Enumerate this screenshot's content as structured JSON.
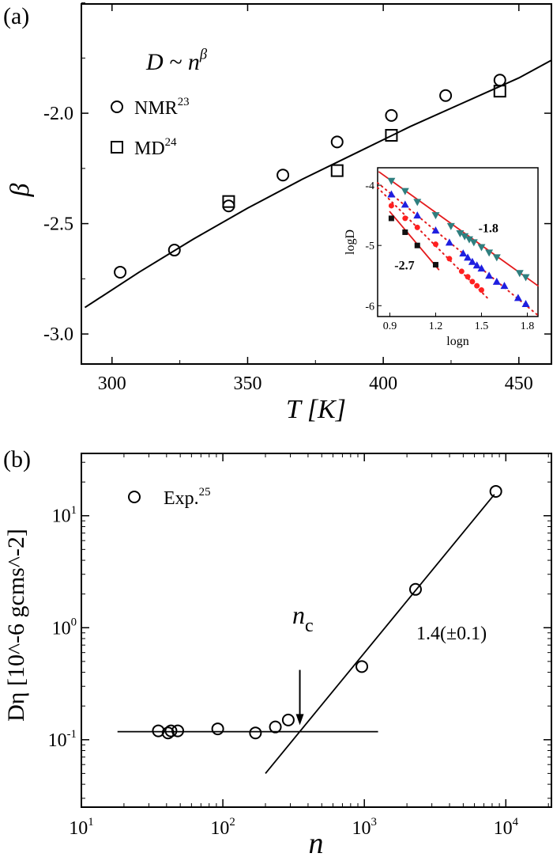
{
  "chart_data": [
    {
      "panel_label": "(a)",
      "type": "scatter",
      "xlabel": "T [K]",
      "ylabel": "β",
      "xlim": [
        288.7,
        462
      ],
      "ylim": [
        -3.136,
        -1.505
      ],
      "xticks": [
        300,
        350,
        400,
        450
      ],
      "xtick_labels": [
        "300",
        "350",
        "400",
        "450"
      ],
      "yticks": [
        -3.0,
        -2.5,
        -2.0
      ],
      "ytick_labels": [
        "-3.0",
        "-2.5",
        "-2.0"
      ],
      "annotation": "D ~ n^β",
      "legend_position": "top-left",
      "series": [
        {
          "name": "NMR",
          "ref": "23",
          "marker": "circle",
          "x": [
            303,
            323,
            343,
            363,
            383,
            403,
            423,
            443
          ],
          "y": [
            -2.72,
            -2.62,
            -2.42,
            -2.28,
            -2.13,
            -2.01,
            -1.92,
            -1.85
          ]
        },
        {
          "name": "MD",
          "ref": "24",
          "marker": "square",
          "x": [
            343,
            383,
            403,
            443
          ],
          "y": [
            -2.4,
            -2.26,
            -2.1,
            -1.9
          ]
        }
      ],
      "fit_curve": {
        "x": [
          290,
          310,
          330,
          350,
          370,
          390,
          410,
          430,
          450,
          462
        ],
        "y": [
          -2.88,
          -2.72,
          -2.57,
          -2.43,
          -2.3,
          -2.18,
          -2.06,
          -1.95,
          -1.84,
          -1.76
        ]
      },
      "inset": {
        "type": "scatter",
        "xlabel": "logn",
        "ylabel": "logD",
        "xlim": [
          0.82,
          1.87
        ],
        "ylim": [
          -6.18,
          -3.71
        ],
        "xticks": [
          0.9,
          1.2,
          1.5,
          1.8
        ],
        "xtick_labels": [
          "0.9",
          "1.2",
          "1.5",
          "1.8"
        ],
        "yticks": [
          -4,
          -5,
          -6
        ],
        "ytick_labels": [
          "-4",
          "-5",
          "-6"
        ],
        "slope_labels": [
          "-1.8",
          "-2.7"
        ],
        "colors": {
          "fit": "#e31a1c",
          "teal": "#2f7f7f",
          "blue": "#1f1fe0",
          "red": "#ff2020",
          "black": "#111111"
        },
        "series": [
          {
            "marker": "triangle-down",
            "color": "#2f7f7f",
            "x": [
              0.91,
              1.0,
              1.08,
              1.2,
              1.3,
              1.36,
              1.39,
              1.42,
              1.45,
              1.5,
              1.55,
              1.6,
              1.75,
              1.79
            ],
            "y": [
              -3.93,
              -4.1,
              -4.28,
              -4.5,
              -4.68,
              -4.8,
              -4.85,
              -4.9,
              -4.95,
              -5.03,
              -5.12,
              -5.2,
              -5.46,
              -5.53
            ]
          },
          {
            "marker": "triangle-up",
            "color": "#1f1fe0",
            "x": [
              0.91,
              1.0,
              1.08,
              1.2,
              1.29,
              1.38,
              1.41,
              1.44,
              1.47,
              1.5,
              1.55,
              1.6,
              1.65,
              1.74,
              1.79
            ],
            "y": [
              -4.15,
              -4.32,
              -4.5,
              -4.75,
              -4.95,
              -5.13,
              -5.2,
              -5.27,
              -5.33,
              -5.38,
              -5.5,
              -5.6,
              -5.67,
              -5.87,
              -5.97
            ]
          },
          {
            "marker": "circle-filled",
            "color": "#ff2020",
            "x": [
              0.91,
              1.0,
              1.08,
              1.2,
              1.29,
              1.37,
              1.41,
              1.44,
              1.47,
              1.5
            ],
            "y": [
              -4.34,
              -4.55,
              -4.7,
              -4.98,
              -5.22,
              -5.43,
              -5.52,
              -5.6,
              -5.67,
              -5.74
            ]
          },
          {
            "marker": "square-filled",
            "color": "#111111",
            "x": [
              0.91,
              1.0,
              1.08,
              1.2
            ],
            "y": [
              -4.55,
              -4.78,
              -5.0,
              -5.32
            ]
          }
        ],
        "lines": [
          {
            "style": "solid",
            "x": [
              0.83,
              1.87
            ],
            "y": [
              -3.78,
              -5.67
            ]
          },
          {
            "style": "solid",
            "x": [
              0.9,
              1.22
            ],
            "y": [
              -4.44,
              -5.4
            ]
          },
          {
            "style": "dotted",
            "x": [
              0.82,
              1.87
            ],
            "y": [
              -3.96,
              -6.16
            ]
          },
          {
            "style": "dotted",
            "x": [
              0.82,
              1.55
            ],
            "y": [
              -4.04,
              -5.9
            ]
          }
        ]
      }
    },
    {
      "panel_label": "(b)",
      "type": "scatter",
      "xlabel": "n",
      "ylabel": "Dη [10^-6 gcms^-2]",
      "xscale": "log",
      "yscale": "log",
      "xlim": [
        10,
        21000
      ],
      "ylim": [
        0.025,
        36
      ],
      "xticks": [
        10,
        100,
        1000,
        10000
      ],
      "xtick_labels": [
        "10^1",
        "10^2",
        "10^3",
        "10^4"
      ],
      "yticks": [
        0.1,
        1,
        10
      ],
      "ytick_labels": [
        "10^-1",
        "10^0",
        "10^1"
      ],
      "legend_position": "top-left",
      "series": [
        {
          "name": "Exp.",
          "ref": "25",
          "marker": "circle",
          "x": [
            35,
            41,
            43,
            48,
            92,
            170,
            235,
            290,
            960,
            2300,
            8500
          ],
          "y": [
            0.12,
            0.115,
            0.12,
            0.12,
            0.125,
            0.115,
            0.13,
            0.15,
            0.45,
            2.2,
            16.5
          ]
        }
      ],
      "lines": [
        {
          "x": [
            18,
            1250
          ],
          "y": [
            0.118,
            0.118
          ]
        },
        {
          "x": [
            200,
            8300
          ],
          "y": [
            0.05,
            15.5
          ]
        }
      ],
      "slope_label": "1.4(±0.1)",
      "nc_label": {
        "main": "n",
        "sub": "c"
      },
      "arrow": {
        "x": 350,
        "y_from": 0.42,
        "y_to": 0.135
      }
    }
  ]
}
